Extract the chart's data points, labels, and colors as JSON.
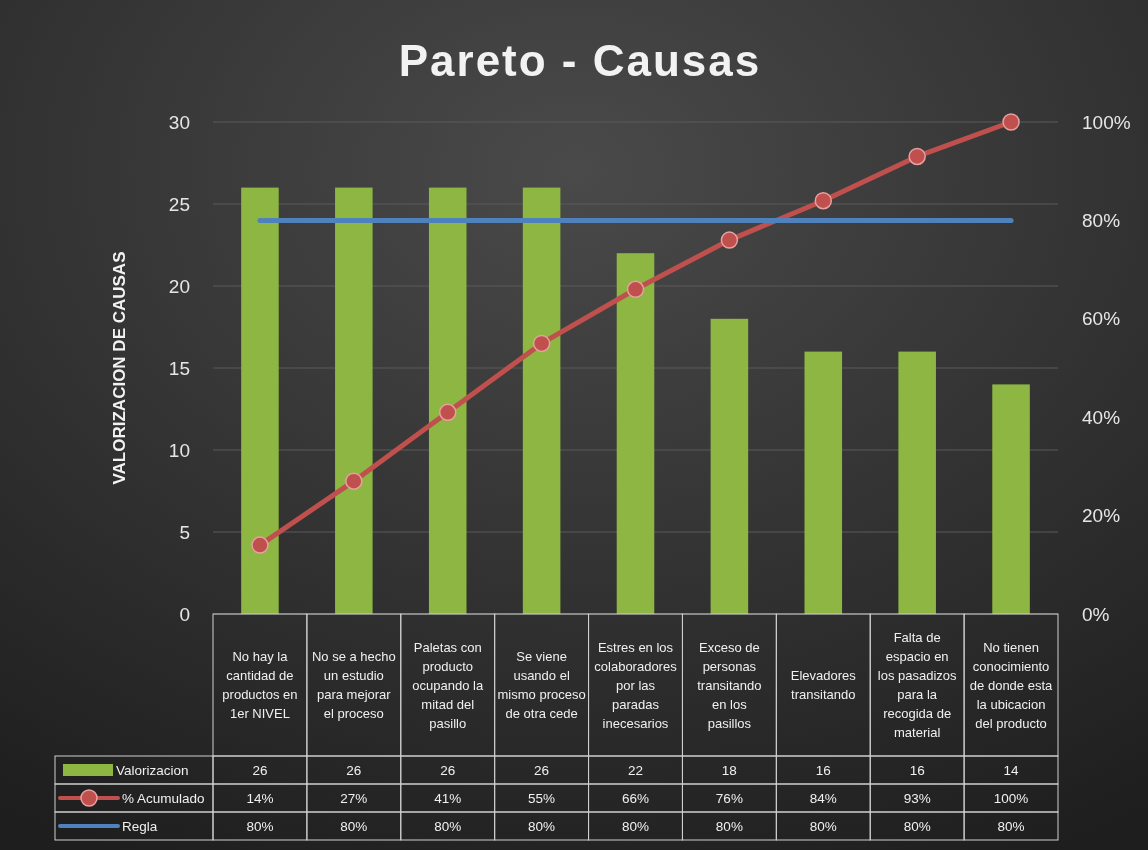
{
  "chart_data": {
    "type": "bar",
    "title": "Pareto - Causas",
    "ylabel": "VALORIZACION DE CAUSAS",
    "categories": [
      "No hay la cantidad de productos en 1er NIVEL",
      "No se a hecho un estudio para mejorar el proceso",
      "Paletas con producto ocupando la mitad del pasillo",
      "Se viene usando el mismo proceso de otra cede",
      "Estres en los colaboradores por las paradas inecesarios",
      "Exceso de personas transitando en los pasillos",
      "Elevadores transitando",
      "Falta de espacio en los pasadizos para la recogida de material",
      "No tienen conocimiento de donde esta la ubicacion del producto"
    ],
    "series": [
      {
        "name": "Valorizacion",
        "color": "#8db642",
        "values": [
          26,
          26,
          26,
          26,
          22,
          18,
          16,
          16,
          14
        ],
        "value_labels": [
          "26",
          "26",
          "26",
          "26",
          "22",
          "18",
          "16",
          "16",
          "14"
        ]
      },
      {
        "name": "% Acumulado",
        "type": "line",
        "axis": "y2",
        "color": "#c0504d",
        "marker": "circle",
        "values": [
          14,
          27,
          41,
          55,
          66,
          76,
          84,
          93,
          100
        ],
        "value_labels": [
          "14%",
          "27%",
          "41%",
          "55%",
          "66%",
          "76%",
          "84%",
          "93%",
          "100%"
        ]
      },
      {
        "name": "Regla",
        "type": "line",
        "axis": "y2",
        "color": "#4f81bd",
        "marker": "none",
        "values": [
          80,
          80,
          80,
          80,
          80,
          80,
          80,
          80,
          80
        ],
        "value_labels": [
          "80%",
          "80%",
          "80%",
          "80%",
          "80%",
          "80%",
          "80%",
          "80%",
          "80%"
        ]
      }
    ],
    "ylim": [
      0,
      30
    ],
    "yticks": [
      0,
      5,
      10,
      15,
      20,
      25,
      30
    ],
    "y2lim": [
      0,
      100
    ],
    "y2ticks": [
      {
        "value": 0,
        "label": "0%"
      },
      {
        "value": 20,
        "label": "20%"
      },
      {
        "value": 40,
        "label": "40%"
      },
      {
        "value": 60,
        "label": "60%"
      },
      {
        "value": 80,
        "label": "80%"
      },
      {
        "value": 100,
        "label": "100%"
      }
    ],
    "grid": "y",
    "legend": "bottom"
  }
}
